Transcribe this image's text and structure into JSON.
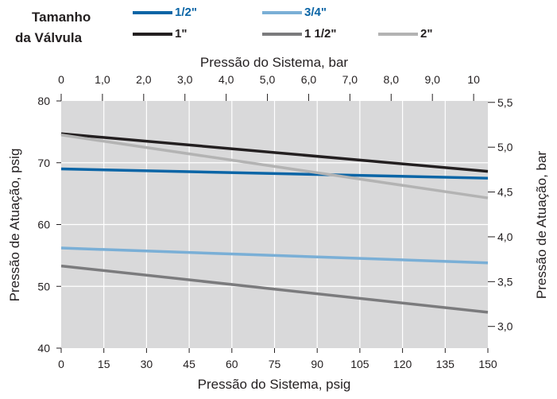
{
  "legend": {
    "title_line1": "Tamanho",
    "title_line2": "da Válvula"
  },
  "chart_data": {
    "type": "line",
    "title": "",
    "xlabel": "Pressão do Sistema, psig",
    "x2label": "Pressão do Sistema, bar",
    "ylabel": "Pressão de Atuação, psig",
    "y2label": "Pressão de Atuação, bar",
    "xlim": [
      0,
      150
    ],
    "ylim": [
      40,
      80
    ],
    "x2lim": [
      0,
      10.345
    ],
    "y2lim": [
      2.758,
      5.516
    ],
    "x_ticks": [
      "0",
      "15",
      "30",
      "45",
      "60",
      "75",
      "90",
      "105",
      "120",
      "135",
      "150"
    ],
    "y_ticks": [
      "40",
      "50",
      "60",
      "70",
      "80"
    ],
    "x2_ticks": [
      "0",
      "1,0",
      "2,0",
      "3,0",
      "4,0",
      "5,0",
      "6,0",
      "7,0",
      "8,0",
      "9,0",
      "10"
    ],
    "x2_tick_values": [
      0,
      1,
      2,
      3,
      4,
      5,
      6,
      7,
      8,
      9,
      10
    ],
    "y2_ticks": [
      "3,0",
      "3,5",
      "4,0",
      "4,5",
      "5,0",
      "5,5"
    ],
    "y2_tick_values": [
      3.0,
      3.5,
      4.0,
      4.5,
      5.0,
      5.5
    ],
    "grid": true,
    "legend_position": "top-left",
    "series": [
      {
        "name": "1/2\"",
        "color": "#0b65a6",
        "label_color": "#0b65a6",
        "x": [
          0,
          150
        ],
        "y": [
          69.0,
          67.5
        ]
      },
      {
        "name": "3/4\"",
        "color": "#7aafd6",
        "label_color": "#0b65a6",
        "x": [
          0,
          150
        ],
        "y": [
          56.2,
          53.8
        ]
      },
      {
        "name": "1\"",
        "color": "#231f20",
        "label_color": "#231f20",
        "x": [
          0,
          150
        ],
        "y": [
          74.7,
          68.6
        ]
      },
      {
        "name": "1 1/2\"",
        "color": "#7b7b7d",
        "label_color": "#231f20",
        "x": [
          0,
          150
        ],
        "y": [
          53.3,
          45.8
        ]
      },
      {
        "name": "2\"",
        "color": "#b3b3b3",
        "label_color": "#231f20",
        "x": [
          0,
          150
        ],
        "y": [
          74.5,
          64.3
        ]
      }
    ]
  }
}
